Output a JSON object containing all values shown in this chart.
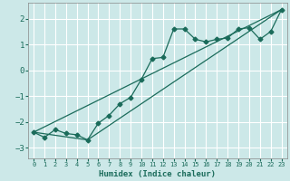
{
  "xlabel": "Humidex (Indice chaleur)",
  "background_color": "#cce8e8",
  "grid_color": "#ffffff",
  "line_color": "#1a6b5a",
  "xlim": [
    -0.5,
    23.5
  ],
  "ylim": [
    -3.4,
    2.6
  ],
  "xticks": [
    0,
    1,
    2,
    3,
    4,
    5,
    6,
    7,
    8,
    9,
    10,
    11,
    12,
    13,
    14,
    15,
    16,
    17,
    18,
    19,
    20,
    21,
    22,
    23
  ],
  "yticks": [
    -3,
    -2,
    -1,
    0,
    1,
    2
  ],
  "curve1_x": [
    0,
    1,
    2,
    3,
    4,
    5,
    6,
    7,
    8,
    9,
    10,
    11,
    12,
    13,
    14,
    15,
    16,
    17,
    18,
    19,
    20,
    21,
    22,
    23
  ],
  "curve1_y": [
    -2.4,
    -2.6,
    -2.3,
    -2.45,
    -2.5,
    -2.7,
    -2.05,
    -1.75,
    -1.3,
    -1.05,
    -0.35,
    0.45,
    0.5,
    1.6,
    1.6,
    1.2,
    1.1,
    1.2,
    1.25,
    1.6,
    1.65,
    1.2,
    1.5,
    2.35
  ],
  "curve2_x": [
    0,
    5,
    23
  ],
  "curve2_y": [
    -2.4,
    -2.7,
    2.35
  ],
  "curve3_x": [
    0,
    23
  ],
  "curve3_y": [
    -2.4,
    2.35
  ]
}
